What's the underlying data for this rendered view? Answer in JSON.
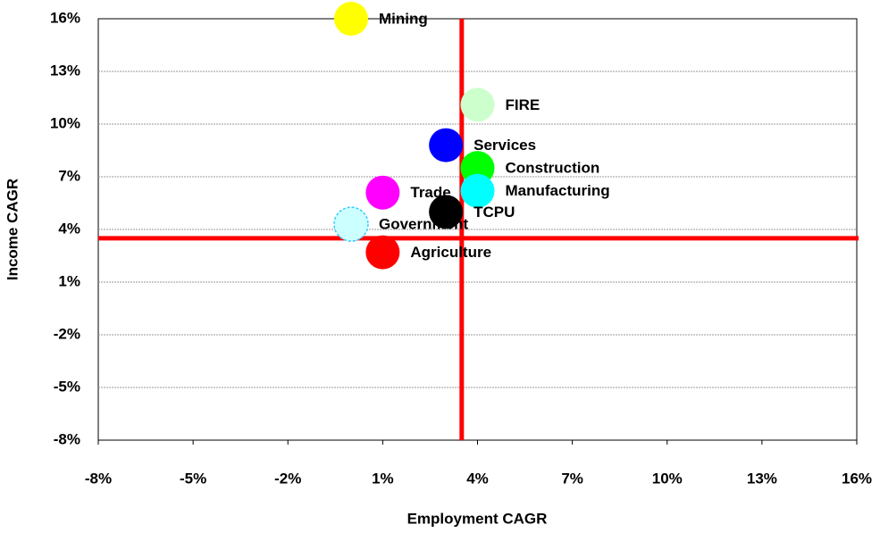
{
  "chart_data": {
    "type": "scatter",
    "x_label": "Employment CAGR",
    "y_label": "Income CAGR",
    "xlim": [
      -8,
      16
    ],
    "ylim": [
      -8,
      16
    ],
    "xticks": [
      {
        "value": -8,
        "label": "-8%"
      },
      {
        "value": -5,
        "label": "-5%"
      },
      {
        "value": -2,
        "label": "-2%"
      },
      {
        "value": 1,
        "label": "1%"
      },
      {
        "value": 4,
        "label": "4%"
      },
      {
        "value": 7,
        "label": "7%"
      },
      {
        "value": 10,
        "label": "10%"
      },
      {
        "value": 13,
        "label": "13%"
      },
      {
        "value": 16,
        "label": "16%"
      }
    ],
    "yticks": [
      {
        "value": -8,
        "label": "-8%"
      },
      {
        "value": -5,
        "label": "-5%"
      },
      {
        "value": -2,
        "label": "-2%"
      },
      {
        "value": 1,
        "label": "1%"
      },
      {
        "value": 4,
        "label": "4%"
      },
      {
        "value": 7,
        "label": "7%"
      },
      {
        "value": 10,
        "label": "10%"
      },
      {
        "value": 13,
        "label": "13%"
      },
      {
        "value": 16,
        "label": "16%"
      }
    ],
    "grid": true,
    "reference_x": 3.5,
    "reference_y": 3.5,
    "reference_color": "#ff0000",
    "points": [
      {
        "label": "Mining",
        "x": 0,
        "y": 16,
        "color": "#ffff00"
      },
      {
        "label": "FIRE",
        "x": 4,
        "y": 11.1,
        "color": "#ccffcc"
      },
      {
        "label": "Services",
        "x": 3,
        "y": 8.8,
        "color": "#0000ff"
      },
      {
        "label": "Construction",
        "x": 4,
        "y": 7.5,
        "color": "#00ff00"
      },
      {
        "label": "Manufacturing",
        "x": 4,
        "y": 6.2,
        "color": "#00ffff"
      },
      {
        "label": "Trade",
        "x": 1,
        "y": 6.1,
        "color": "#ff00ff"
      },
      {
        "label": "TCPU",
        "x": 3,
        "y": 5,
        "color": "#000000"
      },
      {
        "label": "Government",
        "x": 0,
        "y": 4.3,
        "color": "#ccffff"
      },
      {
        "label": "Agriculture",
        "x": 1,
        "y": 2.7,
        "color": "#ff0000"
      }
    ]
  }
}
